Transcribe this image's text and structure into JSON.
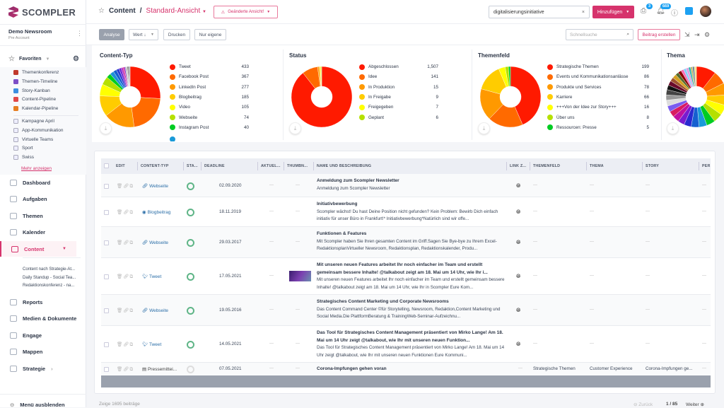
{
  "app": {
    "logo": "SCOMPLER",
    "org": "Demo Newsroom",
    "plan": "Pre Account"
  },
  "header": {
    "section": "Content",
    "separator": "/",
    "view": "Standard-Ansicht",
    "changed": "Geänderte Ansicht!",
    "search_value": "digitalisierungsinitiative",
    "add": "Hinzufügen",
    "gift_count": "3",
    "notif_count": "669"
  },
  "toolbar": {
    "analyse": "Analyse",
    "sort": "Wert ↓",
    "print": "Drucken",
    "own": "Nur eigene",
    "quicksearch_placeholder": "Schnellsuche",
    "create": "Beitrag erstellen"
  },
  "sidebar": {
    "favorites": "Favoriten",
    "fav_items": [
      {
        "label": "Themenkonferenz",
        "color": "#c0392b"
      },
      {
        "label": "Themen-Timeline",
        "color": "#7d4fc7"
      },
      {
        "label": "Story-Kanban",
        "color": "#3d8fe0"
      },
      {
        "label": "Content-Pipeline",
        "color": "#e04848"
      },
      {
        "label": "Kalendar-Pipeline",
        "color": "#e67e22"
      }
    ],
    "cal_items": [
      "Kampagne April",
      "App-Kommunikation",
      "Virtuelle Teams",
      "Sport",
      "Swiss"
    ],
    "more": "Mehr anzeigen",
    "nav": [
      "Dashboard",
      "Aufgaben",
      "Themen",
      "Kalender",
      "Content",
      "Reports",
      "Medien & Dokumente",
      "Engage",
      "Mappen",
      "Strategie"
    ],
    "content_sub": [
      "Content nach Strategie-At...",
      "Daily Standup - Social Tea...",
      "Redaktionskonferenz - na..."
    ],
    "hide_menu": "Menü ausblenden"
  },
  "chart_data": [
    {
      "type": "pie",
      "title": "Content-Typ",
      "labels": [
        "Tweet",
        "Facebook Post",
        "LinkedIn Post",
        "Blogbeitrag",
        "Video",
        "Webseite",
        "Instagram Post"
      ],
      "values": [
        433,
        367,
        277,
        185,
        105,
        74,
        40
      ],
      "value_labels": [
        "433",
        "367",
        "277",
        "185",
        "105",
        "74",
        "40"
      ],
      "colors": [
        "#ff1a00",
        "#ff6a00",
        "#ff9900",
        "#ffcc00",
        "#ffff00",
        "#b5e000",
        "#00cc22"
      ],
      "other_values": [
        35,
        30,
        25,
        20,
        15,
        12,
        10,
        10,
        8,
        8,
        6,
        6,
        5
      ],
      "other_colors": [
        "#1e90d8",
        "#1560d0",
        "#2a3ad0",
        "#6a22d0",
        "#b020c0",
        "#d81b80",
        "#7a1bd0",
        "#aaaaaa",
        "#cccccc",
        "#555555",
        "#111111",
        "#999999",
        "#333333"
      ]
    },
    {
      "type": "pie",
      "title": "Status",
      "labels": [
        "Abgeschlossen",
        "Idee",
        "In Produktion",
        "In Freigabe",
        "Freigegeben",
        "Geplant"
      ],
      "values": [
        1507,
        141,
        15,
        9,
        7,
        6
      ],
      "value_labels": [
        "1,507",
        "141",
        "15",
        "9",
        "7",
        "6"
      ],
      "colors": [
        "#ff1a00",
        "#ff6a00",
        "#ff9900",
        "#ffcc00",
        "#ffff00",
        "#b5e000"
      ]
    },
    {
      "type": "pie",
      "title": "Themenfeld",
      "labels": [
        "Strategische Themen",
        "Events und Kommunikationsanlässe",
        "Produkte und Services",
        "Karriere",
        "+++Von der Idee zur Story+++",
        "Über uns",
        "Ressourcen: Presse"
      ],
      "values": [
        199,
        86,
        78,
        66,
        16,
        8,
        5
      ],
      "value_labels": [
        "199",
        "86",
        "78",
        "66",
        "16",
        "8",
        "5"
      ],
      "colors": [
        "#ff1a00",
        "#ff6a00",
        "#ff9900",
        "#ffcc00",
        "#ffff00",
        "#b5e000",
        "#00cc22"
      ]
    },
    {
      "type": "pie",
      "title": "Thema",
      "values": [
        30,
        20,
        18,
        16,
        15,
        14,
        13,
        12,
        12,
        11,
        10,
        10,
        9,
        9,
        9,
        8,
        8,
        7,
        7,
        6,
        6,
        5,
        5,
        4,
        4,
        4,
        3,
        3,
        3,
        3
      ],
      "colors": [
        "#ff1a00",
        "#ff6a00",
        "#ff9900",
        "#ffcc00",
        "#ffff00",
        "#b5e000",
        "#00cc22",
        "#1a9ad8",
        "#1560d0",
        "#2a2ad0",
        "#7a1bd0",
        "#c010a0",
        "#d81b60",
        "#7a5cf0",
        "#dddddd",
        "#999999",
        "#444444",
        "#111111",
        "#6a0a2a",
        "#a0522d",
        "#d4a020",
        "#556b2f",
        "#8b0000",
        "#ff69b4",
        "#87cefa",
        "#dda0dd",
        "#20b2aa",
        "#bdb76b",
        "#778899",
        "#f0e68c"
      ]
    }
  ],
  "table": {
    "headers": [
      "EDIT",
      "CONTENT-TYP",
      "STA...",
      "DEADLINE",
      "AKTUEL...",
      "THUMBN...",
      "NAME UND BESCHREIBUNG",
      "LINK Z...",
      "THEMENFELD",
      "THEMA",
      "STORY",
      "PER"
    ],
    "rows": [
      {
        "type": "Webseite",
        "icon": "link",
        "deadline": "02.09.2020",
        "title": "Anmeldung zum Scompler Newsletter",
        "desc": "Anmeldung zum Scompler Newsletter"
      },
      {
        "type": "Blogbeitrag",
        "icon": "blog",
        "deadline": "18.11.2019",
        "title": "Initiativbewerbung",
        "desc": "Scompler wächst! Du hast Deine Position nicht gefunden? Kein Problem: Bewirb Dich einfach initiativ für unser Büro in Frankfurt!* Initiativbewerbung*Natürlich sind wir offe..."
      },
      {
        "type": "Webseite",
        "icon": "link",
        "deadline": "29.03.2017",
        "title": "Funktionen & Features",
        "desc": "Mit Scompler haben Sie Ihren gesamten Content im Griff.Sagen Sie Bye-bye zu Ihrem Excel-RedaktionsplanVirtueller Newsroom, Redaktionsplan, Redaktionskalender, Produ..."
      },
      {
        "type": "Tweet",
        "icon": "twitter",
        "deadline": "17.05.2021",
        "title": "Mit unseren neuen Features arbeitet Ihr noch einfacher im Team und erstellt gemeinsam bessere Inhalte! @talkabout zeigt am 18. Mai um 14 Uhr, wie Ihr i...",
        "desc": "Mit unseren neuen Features arbeitet Ihr noch einfacher im Team und erstellt gemeinsam bessere Inhalte! @talkabout zeigt am 18. Mai um 14 Uhr, wie Ihr in Scompler Eure Kom..."
      },
      {
        "type": "Webseite",
        "icon": "link",
        "deadline": "19.05.2016",
        "title": "Strategisches Content Marketing und Corporate Newsrooms",
        "desc": "Das Content Command Center ©für Storytelling, Newsroom, Redaktion,Content Marketing und Social Media.Die PlattformBeratung & TrainingWeb-Seminar-Aufzeichnu..."
      },
      {
        "type": "Tweet",
        "icon": "twitter",
        "deadline": "14.05.2021",
        "title": "Das Tool für Strategisches Content Management präsentiert von Mirko Lange! Am 18. Mai um 14 Uhr zeigt @talkabout, wie Ihr mit unseren neuen Funktion...",
        "desc": "Das Tool für Strategisches Content Management präsentiert von Mirko Lange! Am 18. Mai um 14 Uhr zeigt @talkabout, wie Ihr mit unseren neuen Funktionen Eure Kommuni..."
      },
      {
        "type": "Pressemittei...",
        "icon": "press",
        "deadline": "07.05.2021",
        "title": "Corona-Impfungen gehen voran",
        "desc": "",
        "themenfeld": "Strategische Themen",
        "thema": "Customer Experience",
        "story": "Corona-Impfungen ge..."
      }
    ],
    "dash": "—"
  },
  "footer": {
    "showing": "Zeige",
    "count": "1695 beiträge",
    "prev": "Zurück",
    "page": "1 / 85",
    "next": "Weiter"
  }
}
